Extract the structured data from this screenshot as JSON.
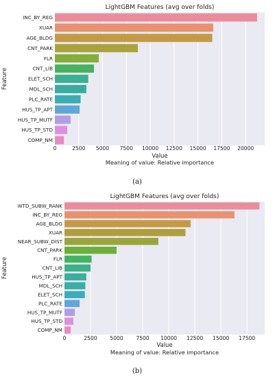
{
  "chart_data": [
    {
      "type": "bar",
      "orientation": "horizontal",
      "title": "LightGBM Features (avg over folds)",
      "ylabel": "Feature",
      "xlabel": "Value",
      "note": "Meaning of value: Relative importance",
      "caption": "(a)",
      "xlim": [
        0,
        22000
      ],
      "xticks": [
        0,
        2500,
        5000,
        7500,
        10000,
        12500,
        15000,
        17500,
        20000
      ],
      "grid": true,
      "categories": [
        "INC_BY_REG",
        "XUAR",
        "AGE_BLDG",
        "CNT_PARK",
        "FLR",
        "CNT_LIB",
        "ELET_SCH",
        "MDL_SCH",
        "PLC_RATE",
        "HUS_TP_APT",
        "HUS_TP_MUTF",
        "HUS_TP_STD",
        "COMP_NM"
      ],
      "values": [
        21200,
        16600,
        16500,
        8700,
        4600,
        4100,
        3500,
        3300,
        2700,
        2600,
        1650,
        1300,
        950
      ],
      "colors": [
        "#ea8d9b",
        "#e8916f",
        "#c49a45",
        "#aaa33c",
        "#84ad3a",
        "#48b35c",
        "#3bb192",
        "#39ac9f",
        "#3cacb5",
        "#5ea8d8",
        "#b19ce6",
        "#dd8fe0",
        "#e98ac7"
      ]
    },
    {
      "type": "bar",
      "orientation": "horizontal",
      "title": "LightGBM Features (avg over folds)",
      "ylabel": "Feature",
      "xlabel": "Value",
      "note": "Meaning of value: Relative importance",
      "caption": "(b)",
      "xlim": [
        0,
        19200
      ],
      "xticks": [
        0,
        2500,
        5000,
        7500,
        10000,
        12500,
        15000,
        17500
      ],
      "grid": true,
      "categories": [
        "WTD_SUBW_RANK",
        "INC_BY_REG",
        "AGE_BLDG",
        "XUAR",
        "NEAR_SUBW_DIST",
        "CNT_PARK",
        "FLR",
        "CNT_LIB",
        "HUS_TP_APT",
        "MDL_SCH",
        "ELET_SCH",
        "PLC_RATE",
        "HUS_TP_MUTF",
        "HUS_TP_STD",
        "COMP_NM"
      ],
      "values": [
        18700,
        16300,
        12100,
        11600,
        9000,
        5000,
        2600,
        2500,
        2100,
        2000,
        1950,
        1450,
        1000,
        850,
        600
      ],
      "colors": [
        "#ea8d9b",
        "#e8916f",
        "#c49a45",
        "#b09e3c",
        "#9aa63b",
        "#6cb03a",
        "#45b45f",
        "#3bb188",
        "#3aaf9e",
        "#3bada8",
        "#3cacbb",
        "#62a6dc",
        "#b19ce6",
        "#dd8fe0",
        "#e98ac7"
      ]
    }
  ]
}
